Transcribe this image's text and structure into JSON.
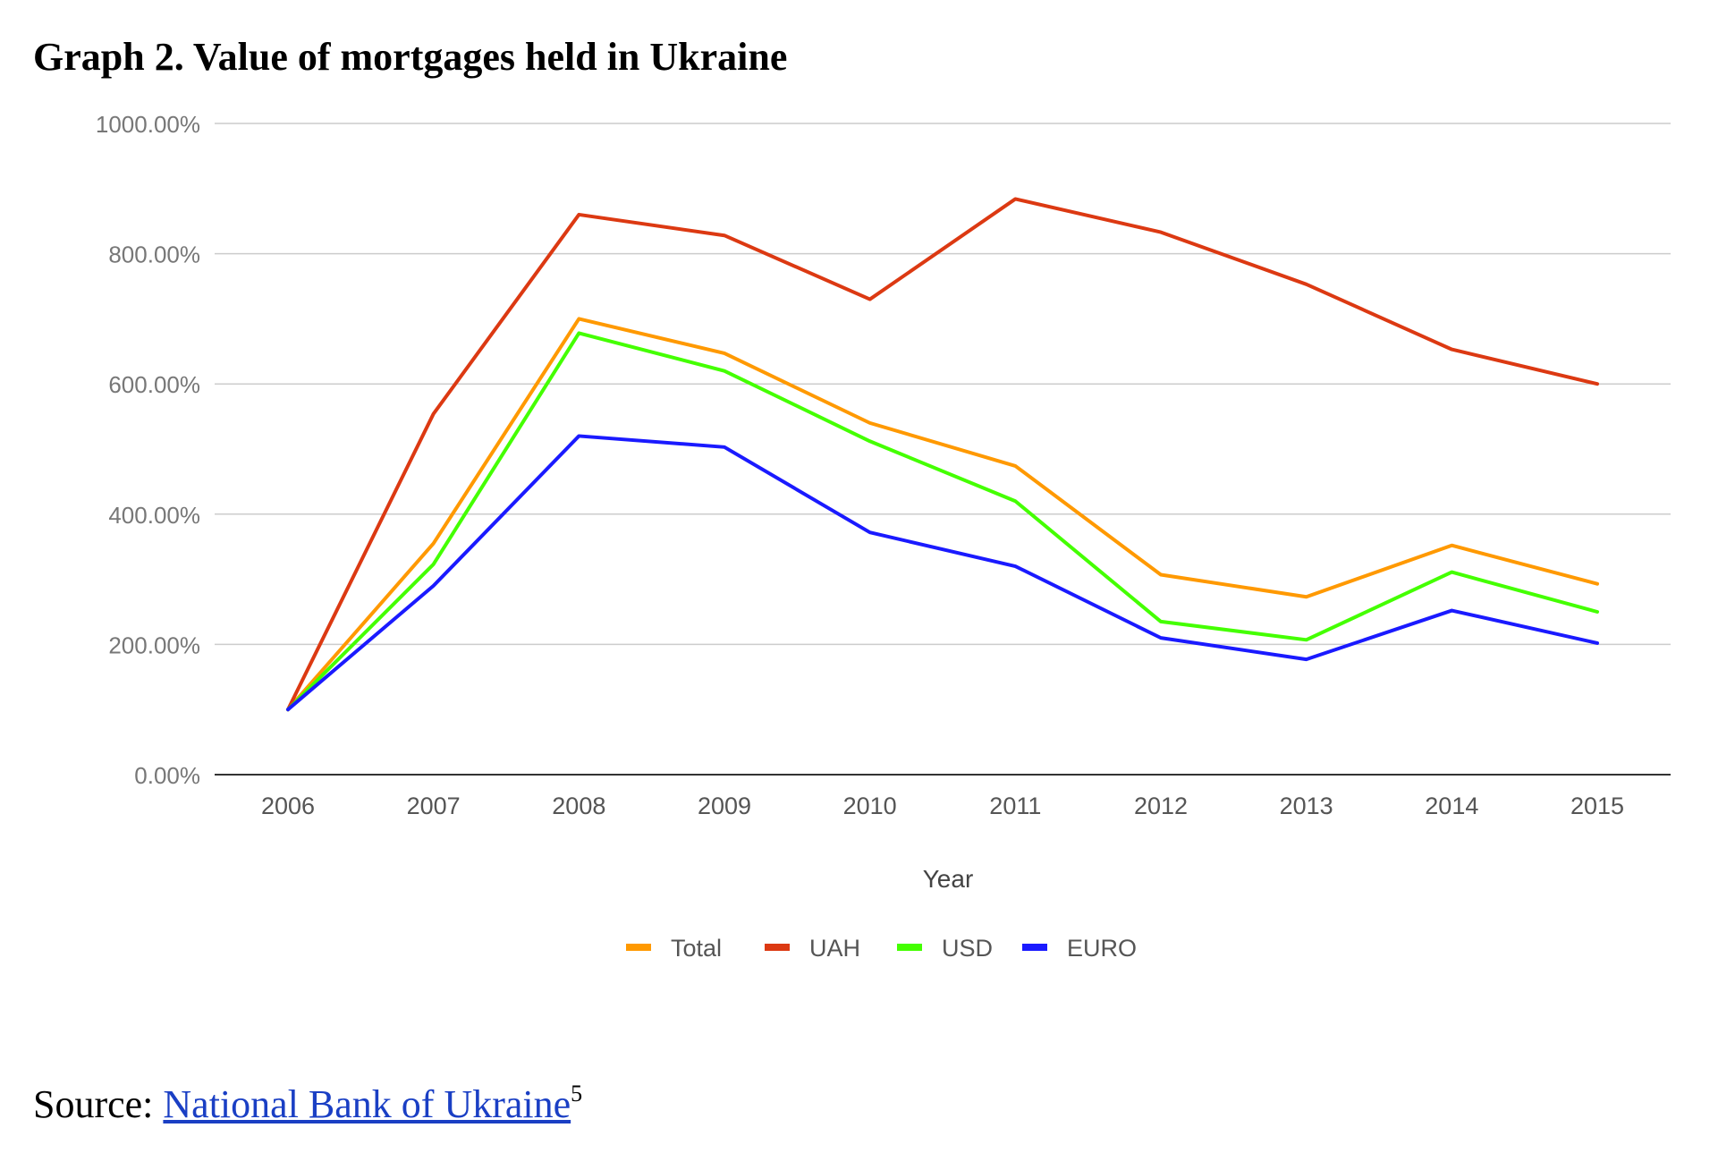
{
  "page": {
    "title": "Graph 2. Value of mortgages held in Ukraine",
    "source_label": "Source: ",
    "source_link_text": "National Bank of Ukraine",
    "footnote_marker": "5"
  },
  "chart_data": {
    "type": "line",
    "xlabel": "Year",
    "ylabel": "",
    "ylim": [
      0,
      1000
    ],
    "y_tick_values": [
      0,
      200,
      400,
      600,
      800,
      1000
    ],
    "y_tick_labels": [
      "0.00%",
      "200.00%",
      "400.00%",
      "600.00%",
      "800.00%",
      "1000.00%"
    ],
    "categories": [
      "2006",
      "2007",
      "2008",
      "2009",
      "2010",
      "2011",
      "2012",
      "2013",
      "2014",
      "2015"
    ],
    "grid": true,
    "legend_position": "bottom",
    "series": [
      {
        "name": "Total",
        "color": "#ff9900",
        "values": [
          100,
          355,
          700,
          647,
          540,
          474,
          307,
          273,
          352,
          293
        ]
      },
      {
        "name": "UAH",
        "color": "#dc3912",
        "values": [
          100,
          554,
          860,
          828,
          730,
          884,
          833,
          753,
          653,
          600
        ]
      },
      {
        "name": "USD",
        "color": "#44ff00",
        "values": [
          100,
          323,
          678,
          620,
          512,
          420,
          235,
          207,
          311,
          250
        ]
      },
      {
        "name": "EURO",
        "color": "#1a1aff",
        "values": [
          100,
          290,
          520,
          503,
          372,
          320,
          210,
          177,
          252,
          202
        ]
      }
    ]
  }
}
